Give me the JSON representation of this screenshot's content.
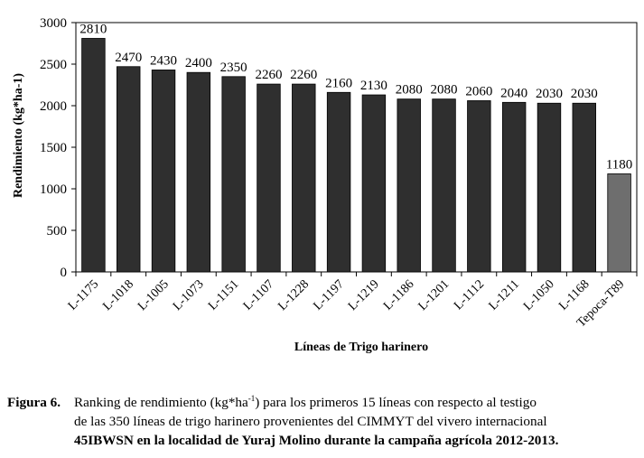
{
  "chart_data": {
    "type": "bar",
    "categories": [
      "L-1175",
      "L-1018",
      "L-1005",
      "L-1073",
      "L-1151",
      "L-1107",
      "L-1228",
      "L-1197",
      "L-1219",
      "L-1186",
      "L-1201",
      "L-1112",
      "L-1211",
      "L-1050",
      "L-1168",
      "Tepoca-T89"
    ],
    "values": [
      2810,
      2470,
      2430,
      2400,
      2350,
      2260,
      2260,
      2160,
      2130,
      2080,
      2080,
      2060,
      2040,
      2030,
      2030,
      1180
    ],
    "data_labels": [
      "2810",
      "2470",
      "2430",
      "2400",
      "2350",
      "2260",
      "2260",
      "2160",
      "2130",
      "2080",
      "2080",
      "2060",
      "2040",
      "2030",
      "2030",
      "1180"
    ],
    "xlabel": "Líneas de Trigo harinero",
    "ylabel": "Rendimiento (kg*ha-1)",
    "ylim": [
      0,
      3000
    ],
    "yticks": [
      0,
      500,
      1000,
      1500,
      2000,
      2500,
      3000
    ],
    "grid": false,
    "legend": "none",
    "colors": {
      "bar": "#2f2f2f",
      "control_bar": "#6e6e6e"
    }
  },
  "caption": {
    "label": "Figura 6.",
    "line1_prefix": "Ranking de rendimiento (kg*ha",
    "line1_sup": "-1",
    "line1_suffix": ") para los primeros 15 líneas con respecto al testigo",
    "line2": "de las 350 líneas de trigo harinero provenientes del CIMMYT del vivero internacional",
    "line3": "45IBWSN en la localidad de Yuraj Molino durante la campaña agrícola 2012-2013."
  }
}
